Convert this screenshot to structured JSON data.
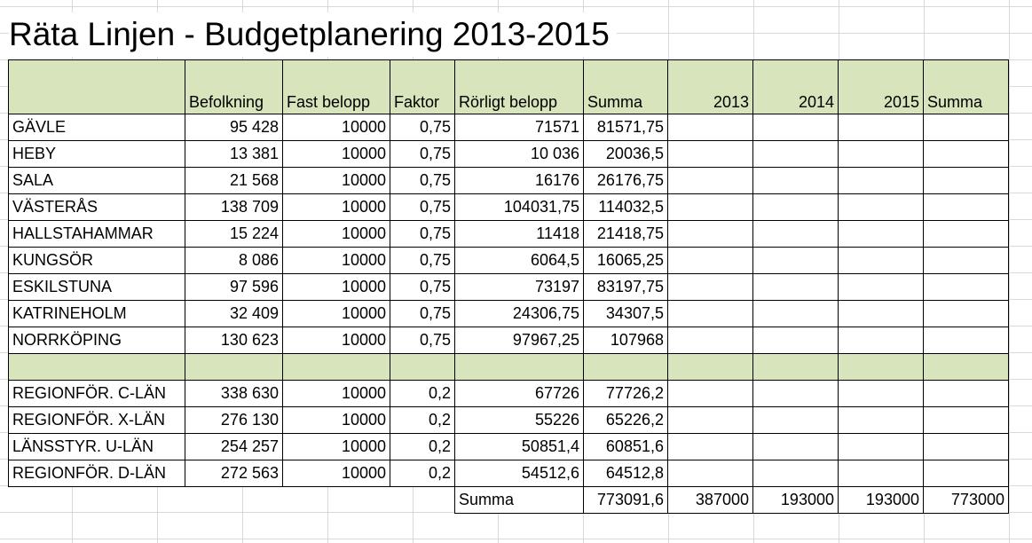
{
  "title": "Räta Linjen - Budgetplanering 2013-2015",
  "headers": [
    "",
    "Befolkning",
    "Fast belopp",
    "Faktor",
    "Rörligt belopp",
    "Summa",
    "2013",
    "2014",
    "2015",
    "Summa"
  ],
  "rows": [
    [
      "GÄVLE",
      "95 428",
      "10000",
      "0,75",
      "71571",
      "81571,75",
      "",
      "",
      "",
      ""
    ],
    [
      "HEBY",
      "13 381",
      "10000",
      "0,75",
      "10 036",
      "20036,5",
      "",
      "",
      "",
      ""
    ],
    [
      "SALA",
      "21 568",
      "10000",
      "0,75",
      "16176",
      "26176,75",
      "",
      "",
      "",
      ""
    ],
    [
      "VÄSTERÅS",
      "138 709",
      "10000",
      "0,75",
      "104031,75",
      "114032,5",
      "",
      "",
      "",
      ""
    ],
    [
      "HALLSTAHAMMAR",
      "15 224",
      "10000",
      "0,75",
      "11418",
      "21418,75",
      "",
      "",
      "",
      ""
    ],
    [
      "KUNGSÖR",
      "8 086",
      "10000",
      "0,75",
      "6064,5",
      "16065,25",
      "",
      "",
      "",
      ""
    ],
    [
      "ESKILSTUNA",
      "97 596",
      "10000",
      "0,75",
      "73197",
      "83197,75",
      "",
      "",
      "",
      ""
    ],
    [
      "KATRINEHOLM",
      "32 409",
      "10000",
      "0,75",
      "24306,75",
      "34307,5",
      "",
      "",
      "",
      ""
    ],
    [
      "NORRKÖPING",
      "130 623",
      "10000",
      "0,75",
      "97967,25",
      "107968",
      "",
      "",
      "",
      ""
    ]
  ],
  "rows2": [
    [
      "REGIONFÖR. C-LÄN",
      "338 630",
      "10000",
      "0,2",
      "67726",
      "77726,2",
      "",
      "",
      "",
      ""
    ],
    [
      "REGIONFÖR. X-LÄN",
      "276 130",
      "10000",
      "0,2",
      "55226",
      "65226,2",
      "",
      "",
      "",
      ""
    ],
    [
      "LÄNSSTYR. U-LÄN",
      "254 257",
      "10000",
      "0,2",
      "50851,4",
      "60851,6",
      "",
      "",
      "",
      ""
    ],
    [
      "REGIONFÖR. D-LÄN",
      "272 563",
      "10000",
      "0,2",
      "54512,6",
      "64512,8",
      "",
      "",
      "",
      ""
    ]
  ],
  "summary": {
    "label": "Summa",
    "total": "773091,6",
    "y2013": "387000",
    "y2014": "193000",
    "y2015": "193000",
    "sum": "773000"
  }
}
